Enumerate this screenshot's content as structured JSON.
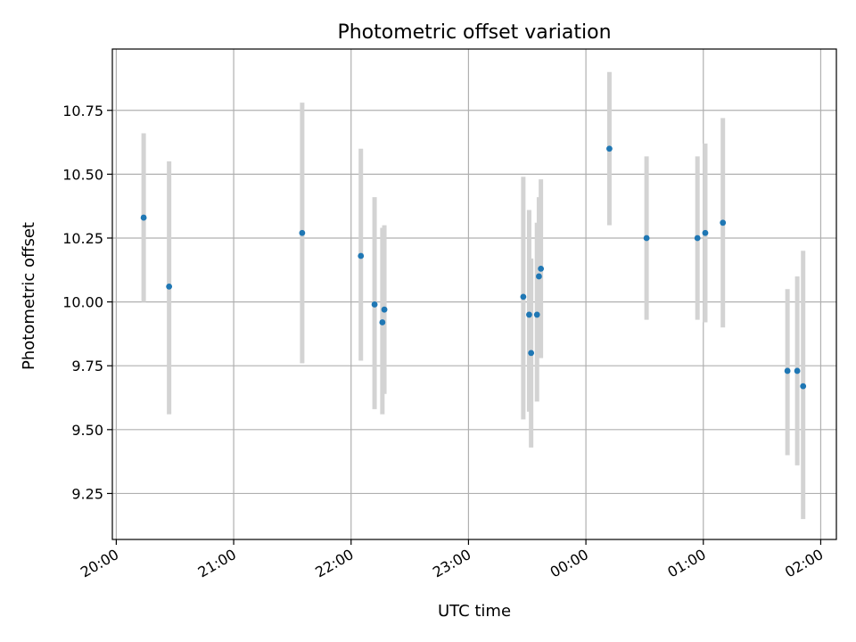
{
  "chart_data": {
    "type": "scatter",
    "title": "Photometric offset variation",
    "xlabel": "UTC time",
    "ylabel": "Photometric offset",
    "x_unit": "UTC time (HH:MM), spanning evening into the following morning",
    "xlim": [
      "19:58",
      "02:08"
    ],
    "ylim": [
      9.07,
      10.99
    ],
    "xticks": [
      "20:00",
      "21:00",
      "22:00",
      "23:00",
      "00:00",
      "01:00",
      "02:00"
    ],
    "yticks": [
      9.25,
      9.5,
      9.75,
      10.0,
      10.25,
      10.5,
      10.75
    ],
    "ytick_labels": [
      "9.25",
      "9.50",
      "9.75",
      "10.00",
      "10.25",
      "10.50",
      "10.75"
    ],
    "grid": true,
    "marker_color": "#1f77b4",
    "errorbar_color": "#d3d3d3",
    "points": [
      {
        "time": "20:14",
        "y": 10.33,
        "yerr_low": 10.0,
        "yerr_high": 10.66
      },
      {
        "time": "20:27",
        "y": 10.06,
        "yerr_low": 9.56,
        "yerr_high": 10.55
      },
      {
        "time": "21:35",
        "y": 10.27,
        "yerr_low": 9.76,
        "yerr_high": 10.78
      },
      {
        "time": "22:05",
        "y": 10.18,
        "yerr_low": 9.77,
        "yerr_high": 10.6
      },
      {
        "time": "22:12",
        "y": 9.99,
        "yerr_low": 9.58,
        "yerr_high": 10.41
      },
      {
        "time": "22:16",
        "y": 9.92,
        "yerr_low": 9.56,
        "yerr_high": 10.29
      },
      {
        "time": "22:17",
        "y": 9.97,
        "yerr_low": 9.64,
        "yerr_high": 10.3
      },
      {
        "time": "23:28",
        "y": 10.02,
        "yerr_low": 9.54,
        "yerr_high": 10.49
      },
      {
        "time": "23:31",
        "y": 9.95,
        "yerr_low": 9.57,
        "yerr_high": 10.36
      },
      {
        "time": "23:32",
        "y": 9.8,
        "yerr_low": 9.43,
        "yerr_high": 10.17
      },
      {
        "time": "23:35",
        "y": 9.95,
        "yerr_low": 9.61,
        "yerr_high": 10.31
      },
      {
        "time": "23:36",
        "y": 10.1,
        "yerr_low": 9.79,
        "yerr_high": 10.41
      },
      {
        "time": "23:37",
        "y": 10.13,
        "yerr_low": 9.78,
        "yerr_high": 10.48
      },
      {
        "time": "00:12",
        "y": 10.6,
        "yerr_low": 10.3,
        "yerr_high": 10.9
      },
      {
        "time": "00:31",
        "y": 10.25,
        "yerr_low": 9.93,
        "yerr_high": 10.57
      },
      {
        "time": "00:57",
        "y": 10.25,
        "yerr_low": 9.93,
        "yerr_high": 10.57
      },
      {
        "time": "01:01",
        "y": 10.27,
        "yerr_low": 9.92,
        "yerr_high": 10.62
      },
      {
        "time": "01:10",
        "y": 10.31,
        "yerr_low": 9.9,
        "yerr_high": 10.72
      },
      {
        "time": "01:43",
        "y": 9.73,
        "yerr_low": 9.4,
        "yerr_high": 10.05
      },
      {
        "time": "01:48",
        "y": 9.73,
        "yerr_low": 9.36,
        "yerr_high": 10.1
      },
      {
        "time": "01:51",
        "y": 9.67,
        "yerr_low": 9.15,
        "yerr_high": 10.2
      }
    ]
  }
}
